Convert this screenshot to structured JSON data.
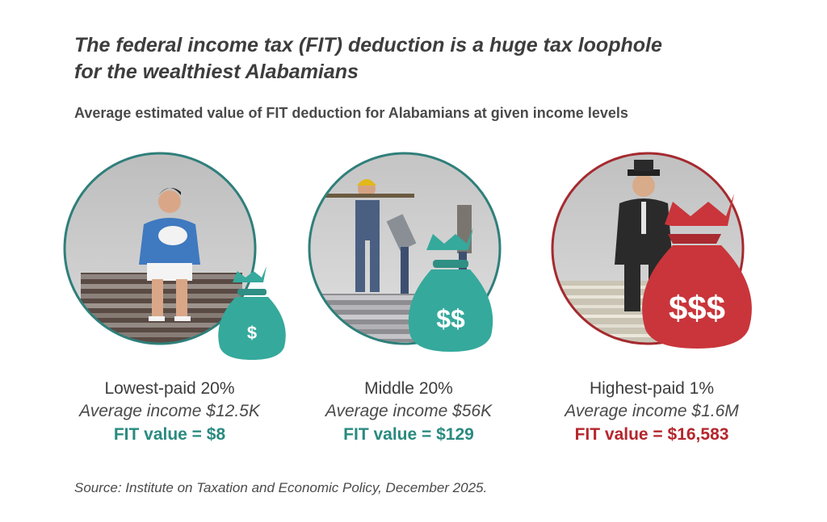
{
  "title_line1": "The federal income tax (FIT) deduction is a huge tax loophole",
  "title_line2": "for the wealthiest Alabamians",
  "subtitle": "Average estimated value of FIT deduction for Alabamians at given income levels",
  "panels": [
    {
      "group": "Lowest-paid 20%",
      "income": "Average income $12.5K",
      "fit": "FIT value = $8",
      "bag_symbol": "$",
      "bag_color": "#35a99c",
      "ring_color": "#2f7f7a",
      "fit_color": "#2a8a80",
      "illustration": "woman-with-baby-on-coin-stack"
    },
    {
      "group": "Middle 20%",
      "income": "Average income $56K",
      "fit": "FIT value = $129",
      "bag_symbol": "$$",
      "bag_color": "#35a99c",
      "ring_color": "#2f7f7a",
      "fit_color": "#2a8a80",
      "illustration": "workers-on-coin-stack"
    },
    {
      "group": "Highest-paid 1%",
      "income": "Average income $1.6M",
      "fit": "FIT value = $16,583",
      "bag_symbol": "$$$",
      "bag_color": "#c9353a",
      "ring_color": "#a52a2f",
      "fit_color": "#b5262c",
      "illustration": "businessman-on-cash-stack"
    }
  ],
  "source": "Source: Institute on Taxation and Economic Policy, December 2025."
}
